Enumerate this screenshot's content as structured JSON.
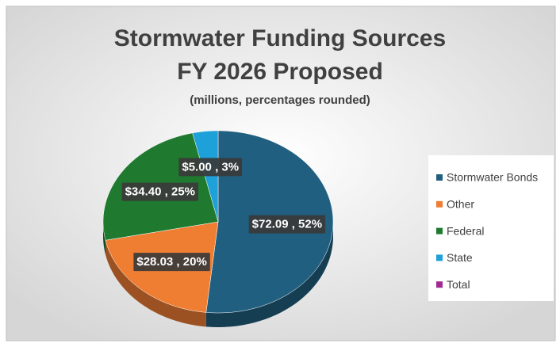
{
  "chart_data": {
    "type": "pie",
    "title": [
      "Stormwater Funding Sources",
      "FY 2026 Proposed"
    ],
    "subtitle": "(millions, percentages rounded)",
    "series": [
      {
        "name": "Stormwater Bonds",
        "color": "#215f80"
      },
      {
        "name": "Other",
        "color": "#ef7d32"
      },
      {
        "name": "Federal",
        "color": "#1f7a2f"
      },
      {
        "name": "State",
        "color": "#1ea0d8"
      },
      {
        "name": "Total",
        "color": "#a02b93"
      }
    ],
    "values": [
      72.09,
      28.03,
      34.4,
      5.0,
      null
    ],
    "value_labels": [
      "$72.09 , 52%",
      "$28.03 , 20%",
      "$34.40 , 25%",
      "$5.00 , 3%",
      null
    ],
    "legend": "right"
  }
}
